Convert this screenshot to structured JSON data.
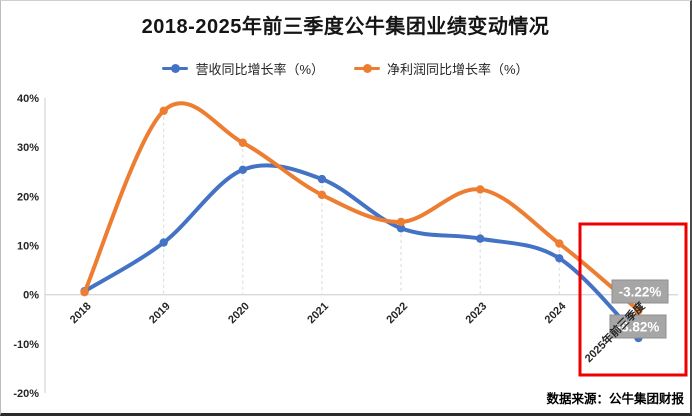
{
  "chart_data": {
    "type": "line",
    "title": "2018-2025年前三季度公牛集团业绩变动情况",
    "categories": [
      "2018",
      "2019",
      "2020",
      "2021",
      "2022",
      "2023",
      "2024",
      "2025年前三季度"
    ],
    "series": [
      {
        "key": "revenue",
        "name": "营收同比增长率（%）",
        "color": "#4472C4",
        "values": [
          0.7,
          10.6,
          25.4,
          23.5,
          13.5,
          11.4,
          7.4,
          -8.82
        ]
      },
      {
        "key": "net-profit",
        "name": "净利润同比增长率（%）",
        "color": "#ED7D31",
        "values": [
          0.5,
          37.4,
          30.9,
          20.3,
          14.8,
          21.4,
          10.4,
          -3.22
        ]
      }
    ],
    "y_ticks": [
      {
        "value": 40,
        "label": "40%"
      },
      {
        "value": 30,
        "label": "30%"
      },
      {
        "value": 20,
        "label": "20%"
      },
      {
        "value": 10,
        "label": "10%"
      },
      {
        "value": 0,
        "label": "0%"
      },
      {
        "value": -10,
        "label": "-10%"
      },
      {
        "value": -20,
        "label": "-20%"
      }
    ],
    "ylim": [
      -20,
      40
    ],
    "legend_position": "top",
    "grid": "vertical dashed drop lines at each category",
    "data_labels": [
      {
        "series_key": "net-profit",
        "text": "-3.22%",
        "bg": "#a6a6a6",
        "text_color": "#ffffff"
      },
      {
        "series_key": "revenue",
        "text": "-8.82%",
        "bg": "#a6a6a6",
        "text_color": "#ffffff"
      }
    ],
    "highlight": {
      "shape": "rectangle",
      "color": "#ee0000",
      "around_category": "2025年前三季度"
    }
  },
  "footer": {
    "source_note": "数据来源：公牛集团财报"
  }
}
